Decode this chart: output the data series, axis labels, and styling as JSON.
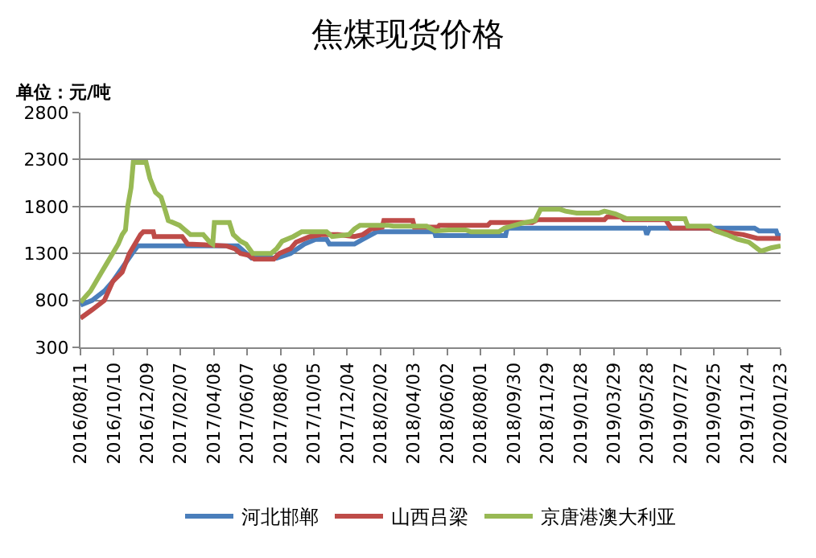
{
  "chart_data": {
    "type": "line",
    "title": "焦煤现货价格",
    "ylabel": "单位：元/吨",
    "ylim": [
      300,
      2800
    ],
    "yticks": [
      300,
      800,
      1300,
      1800,
      2300,
      2800
    ],
    "xlim": [
      "2016-08-11",
      "2020-01-23"
    ],
    "xticks": [
      {
        "value": "2016-08-11",
        "label": "2016/08/11"
      },
      {
        "value": "2016-10-10",
        "label": "2016/10/10"
      },
      {
        "value": "2016-12-09",
        "label": "2016/12/09"
      },
      {
        "value": "2017-02-07",
        "label": "2017/02/07"
      },
      {
        "value": "2017-04-08",
        "label": "2017/04/08"
      },
      {
        "value": "2017-06-07",
        "label": "2017/06/07"
      },
      {
        "value": "2017-08-06",
        "label": "2017/08/06"
      },
      {
        "value": "2017-10-05",
        "label": "2017/10/05"
      },
      {
        "value": "2017-12-04",
        "label": "2017/12/04"
      },
      {
        "value": "2018-02-02",
        "label": "2018/02/02"
      },
      {
        "value": "2018-04-03",
        "label": "2018/04/03"
      },
      {
        "value": "2018-06-02",
        "label": "2018/06/02"
      },
      {
        "value": "2018-08-01",
        "label": "2018/08/01"
      },
      {
        "value": "2018-09-30",
        "label": "2018/09/30"
      },
      {
        "value": "2018-11-29",
        "label": "2018/11/29"
      },
      {
        "value": "2019-01-28",
        "label": "2019/01/28"
      },
      {
        "value": "2019-03-29",
        "label": "2019/03/29"
      },
      {
        "value": "2019-05-28",
        "label": "2019/05/28"
      },
      {
        "value": "2019-07-27",
        "label": "2019/07/27"
      },
      {
        "value": "2019-09-25",
        "label": "2019/09/25"
      },
      {
        "value": "2019-11-24",
        "label": "2019/11/24"
      },
      {
        "value": "2020-01-23",
        "label": "2020/01/23"
      }
    ],
    "grid": "y",
    "legend": "bottom",
    "marker": "none",
    "line_style": "solid",
    "series": [
      {
        "name": "河北邯郸",
        "color": "#4a7ebb",
        "x": [
          "2016-08-11",
          "2016-09-01",
          "2016-09-23",
          "2016-10-08",
          "2016-11-12",
          "2016-11-22",
          "2017-05-21",
          "2017-06-15",
          "2017-07-30",
          "2017-08-24",
          "2017-09-18",
          "2017-10-08",
          "2017-10-28",
          "2017-11-02",
          "2017-12-17",
          "2018-01-01",
          "2018-01-26",
          "2018-05-10",
          "2018-05-12",
          "2018-09-15",
          "2018-09-18",
          "2019-05-24",
          "2019-05-27",
          "2019-06-01",
          "2019-12-07",
          "2019-12-15",
          "2020-01-15",
          "2020-01-18",
          "2020-01-23"
        ],
        "values": [
          750,
          800,
          900,
          1000,
          1300,
          1380,
          1380,
          1250,
          1250,
          1300,
          1400,
          1450,
          1450,
          1400,
          1400,
          1450,
          1530,
          1530,
          1490,
          1490,
          1570,
          1570,
          1500,
          1570,
          1570,
          1540,
          1540,
          1490,
          1490
        ]
      },
      {
        "name": "山西吕梁",
        "color": "#be4b48",
        "x": [
          "2016-08-11",
          "2016-09-01",
          "2016-09-23",
          "2016-10-08",
          "2016-10-25",
          "2016-11-07",
          "2016-11-27",
          "2016-12-02",
          "2016-12-20",
          "2016-12-22",
          "2017-02-10",
          "2017-02-20",
          "2017-05-01",
          "2017-05-16",
          "2017-05-26",
          "2017-06-10",
          "2017-06-20",
          "2017-07-25",
          "2017-08-04",
          "2017-08-24",
          "2017-09-03",
          "2017-09-28",
          "2017-10-18",
          "2017-11-17",
          "2017-12-17",
          "2018-01-01",
          "2018-01-16",
          "2018-02-05",
          "2018-02-08",
          "2018-04-01",
          "2018-04-04",
          "2018-05-16",
          "2018-05-19",
          "2018-08-14",
          "2018-08-19",
          "2018-11-02",
          "2018-11-12",
          "2019-03-12",
          "2019-03-17",
          "2019-04-11",
          "2019-04-16",
          "2019-06-30",
          "2019-07-10",
          "2019-09-18",
          "2019-09-28",
          "2019-11-17",
          "2019-12-12",
          "2020-01-23"
        ],
        "values": [
          610,
          700,
          800,
          1000,
          1100,
          1300,
          1500,
          1530,
          1530,
          1480,
          1480,
          1400,
          1380,
          1350,
          1300,
          1280,
          1240,
          1240,
          1300,
          1350,
          1420,
          1480,
          1500,
          1500,
          1480,
          1500,
          1560,
          1580,
          1650,
          1650,
          1580,
          1580,
          1600,
          1600,
          1630,
          1630,
          1660,
          1660,
          1690,
          1690,
          1660,
          1660,
          1570,
          1570,
          1540,
          1500,
          1460,
          1460
        ]
      },
      {
        "name": "京唐港澳大利亚",
        "color": "#98b954",
        "x": [
          "2016-08-11",
          "2016-08-29",
          "2016-09-08",
          "2016-09-18",
          "2016-09-28",
          "2016-10-08",
          "2016-10-18",
          "2016-10-25",
          "2016-10-31",
          "2016-11-04",
          "2016-11-10",
          "2016-11-14",
          "2016-12-07",
          "2016-12-14",
          "2016-12-24",
          "2017-01-03",
          "2017-01-11",
          "2017-01-16",
          "2017-02-05",
          "2017-02-15",
          "2017-02-25",
          "2017-03-20",
          "2017-04-01",
          "2017-04-06",
          "2017-04-09",
          "2017-05-06",
          "2017-05-13",
          "2017-05-26",
          "2017-06-05",
          "2017-06-17",
          "2017-07-20",
          "2017-07-30",
          "2017-08-09",
          "2017-08-29",
          "2017-09-13",
          "2017-10-28",
          "2017-11-07",
          "2017-12-07",
          "2017-12-17",
          "2017-12-27",
          "2018-02-15",
          "2018-02-25",
          "2018-04-26",
          "2018-05-11",
          "2018-06-05",
          "2018-07-05",
          "2018-07-15",
          "2018-09-03",
          "2018-09-13",
          "2018-10-13",
          "2018-11-07",
          "2018-11-17",
          "2018-12-22",
          "2019-01-01",
          "2019-01-21",
          "2019-03-02",
          "2019-03-12",
          "2019-04-01",
          "2019-04-21",
          "2019-08-04",
          "2019-08-09",
          "2019-09-18",
          "2019-09-28",
          "2019-10-18",
          "2019-11-07",
          "2019-11-27",
          "2019-12-17",
          "2019-12-22",
          "2020-01-06",
          "2020-01-23"
        ],
        "values": [
          780,
          900,
          1000,
          1100,
          1200,
          1300,
          1400,
          1500,
          1550,
          1800,
          2000,
          2270,
          2270,
          2100,
          1950,
          1900,
          1750,
          1650,
          1600,
          1550,
          1500,
          1500,
          1420,
          1400,
          1630,
          1630,
          1500,
          1430,
          1400,
          1300,
          1300,
          1350,
          1430,
          1480,
          1530,
          1530,
          1480,
          1500,
          1560,
          1600,
          1600,
          1590,
          1590,
          1540,
          1550,
          1550,
          1530,
          1530,
          1570,
          1620,
          1650,
          1770,
          1770,
          1750,
          1730,
          1730,
          1750,
          1720,
          1670,
          1670,
          1590,
          1590,
          1540,
          1500,
          1450,
          1420,
          1330,
          1330,
          1360,
          1380
        ]
      }
    ]
  }
}
